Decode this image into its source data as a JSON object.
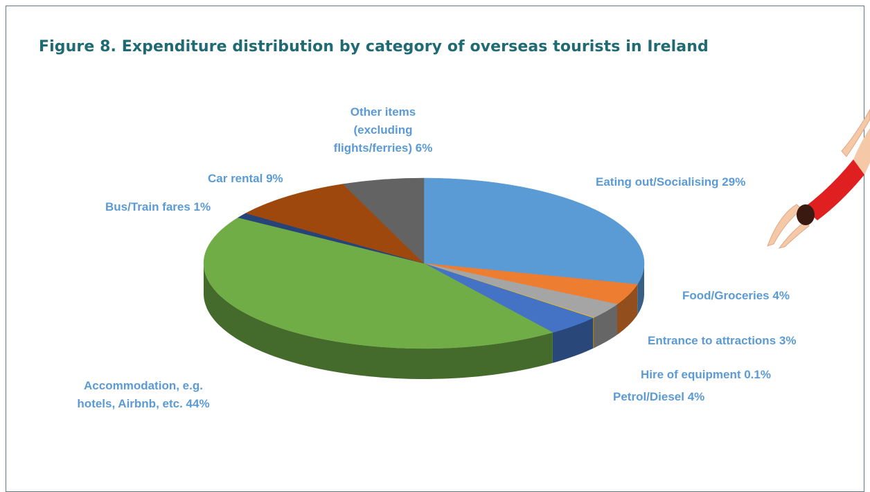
{
  "colors": {
    "title": "#1f6a73",
    "label": "#5b9bd5",
    "border": "#5a7a88"
  },
  "chart_data": {
    "type": "pie",
    "title": "Figure 8. Expenditure distribution by category of overseas tourists in Ireland",
    "style": "3d",
    "slices": [
      {
        "label": "Eating out/Socialising 29%",
        "value": 29,
        "color": "#5b9bd5"
      },
      {
        "label": "Food/Groceries 4%",
        "value": 4,
        "color": "#ed7d31"
      },
      {
        "label": "Entrance to attractions 3%",
        "value": 3,
        "color": "#a5a5a5"
      },
      {
        "label": "Hire of equipment 0.1%",
        "value": 0.1,
        "color": "#ffc000"
      },
      {
        "label": "Petrol/Diesel 4%",
        "value": 4,
        "color": "#4472c4"
      },
      {
        "label": "Accommodation, e.g. hotels, Airbnb, etc.  44%",
        "value": 44,
        "color": "#70ad47"
      },
      {
        "label": "Bus/Train fares 1%",
        "value": 1,
        "color": "#264478"
      },
      {
        "label": "Car rental 9%",
        "value": 9,
        "color": "#9e480e"
      },
      {
        "label": "Other items (excluding flights/ferries) 6%",
        "value": 6,
        "color": "#636363"
      }
    ],
    "label_lines": [
      [
        "Eating out/Socialising 29%"
      ],
      [
        "Food/Groceries 4%"
      ],
      [
        "Entrance to attractions 3%"
      ],
      [
        "Hire of equipment 0.1%"
      ],
      [
        "Petrol/Diesel 4%"
      ],
      [
        "Accommodation, e.g.",
        "hotels, Airbnb, etc.  44%"
      ],
      [
        "Bus/Train fares 1%"
      ],
      [
        "Car rental 9%"
      ],
      [
        "Other items",
        "(excluding",
        "flights/ferries) 6%"
      ]
    ]
  }
}
